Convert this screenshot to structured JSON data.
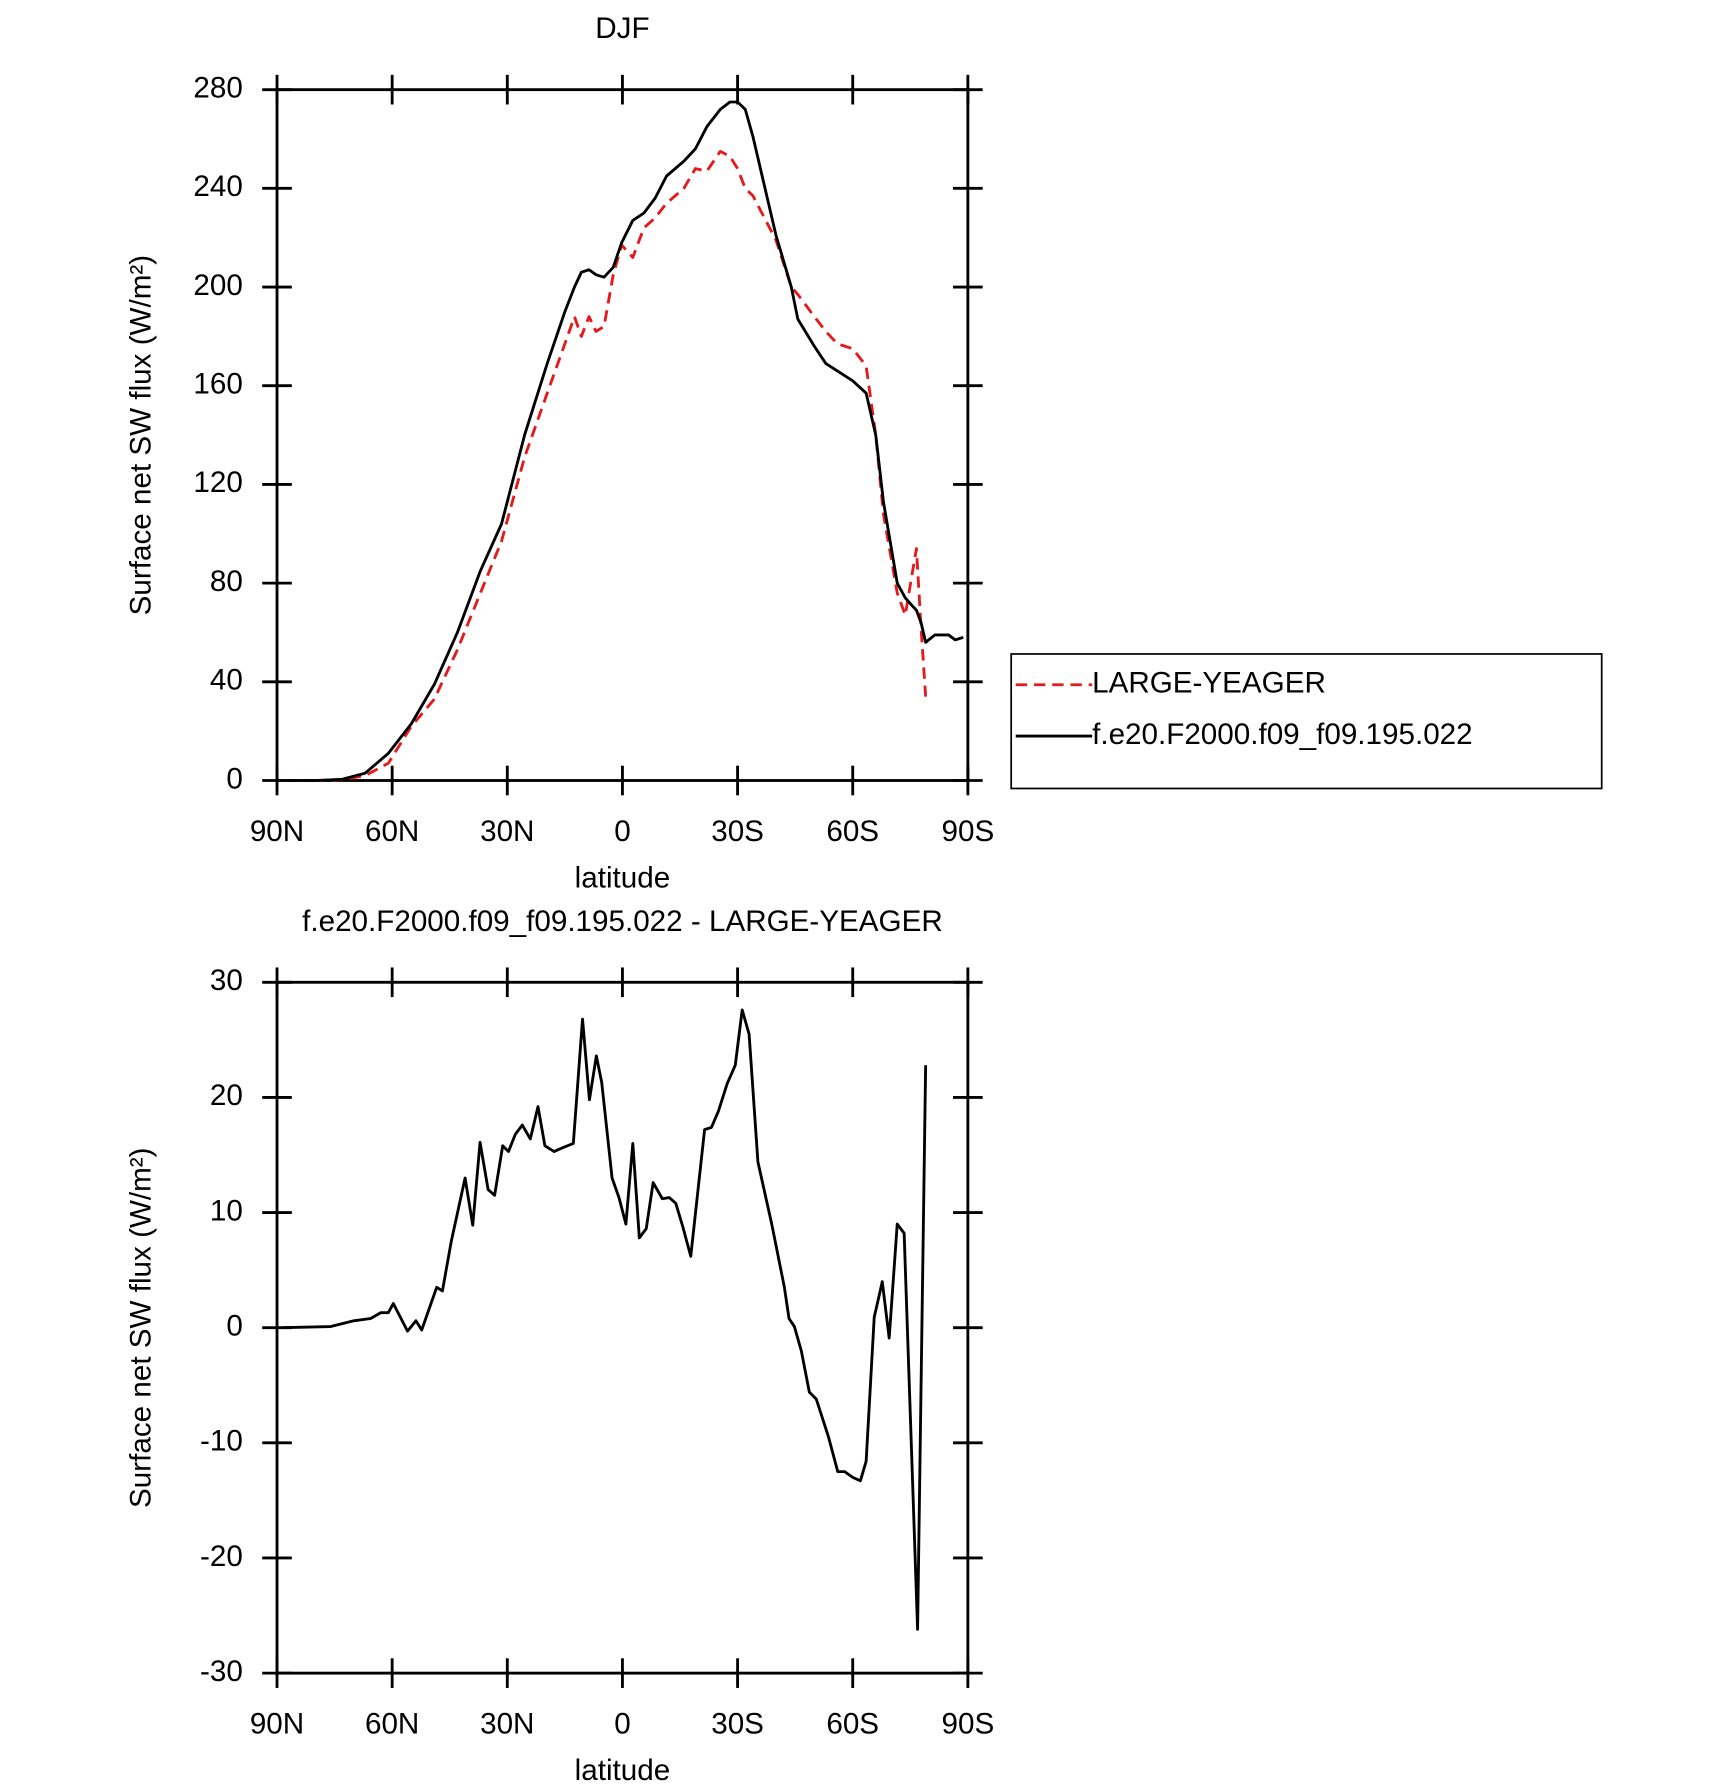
{
  "chart_data": [
    {
      "type": "line",
      "title": "DJF",
      "xlabel": "latitude",
      "ylabel": "Surface net SW flux (W/m²)",
      "x": [
        90,
        80,
        73,
        67,
        61,
        55,
        49,
        43,
        37,
        31.5,
        25.5,
        19.6,
        15,
        12.5,
        10.7,
        8.7,
        6.9,
        4.8,
        2.4,
        0.2,
        -2.7,
        -5.6,
        -8.5,
        -11.5,
        -16,
        -19,
        -22,
        -25.5,
        -28,
        -30,
        -32,
        -34,
        -40,
        -44,
        -45.7,
        -50,
        -53,
        -56,
        -60,
        -63.5,
        -66,
        -68,
        -71.6,
        -73.7,
        -75.4,
        -76.6,
        -77.8,
        -79,
        -81.4,
        -85,
        -86.7,
        -88.8
      ],
      "series": [
        {
          "name": "LARGE-YEAGER",
          "color": "#e41a1c",
          "line_style": "dashed",
          "values": [
            0,
            0,
            0.3,
            2,
            7,
            22,
            33,
            53,
            76,
            97,
            131,
            157,
            177,
            188,
            180,
            188,
            182,
            184,
            205,
            217,
            212,
            224,
            228,
            234,
            240,
            248,
            247,
            255,
            253,
            248,
            240,
            237,
            219,
            200,
            197,
            188,
            182,
            177,
            175,
            168,
            140,
            108,
            76,
            67,
            83,
            94,
            62,
            34,
            null,
            null,
            null,
            null
          ]
        },
        {
          "name": "f.e20.F2000.f09_f09.195.022",
          "color": "#000000",
          "line_style": "solid",
          "values": [
            0,
            0,
            0.5,
            3,
            11,
            23,
            39,
            60,
            85,
            104,
            140,
            169,
            190,
            200,
            206,
            207,
            205,
            204,
            208,
            218,
            227,
            230,
            236,
            245,
            251,
            256,
            265,
            272,
            275,
            275,
            272,
            261,
            221,
            200,
            187,
            176,
            169,
            166,
            162,
            157,
            140,
            113,
            80,
            74,
            71,
            69,
            64,
            56,
            59,
            59,
            57,
            58
          ]
        }
      ],
      "xlim": [
        90,
        -90
      ],
      "xticks": [
        {
          "value": 90,
          "label": "90N"
        },
        {
          "value": 60,
          "label": "60N"
        },
        {
          "value": 30,
          "label": "30N"
        },
        0,
        {
          "value": -30,
          "label": "30S"
        },
        {
          "value": -60,
          "label": "60S"
        },
        {
          "value": -90,
          "label": "90S"
        }
      ],
      "ylim": [
        0,
        280
      ],
      "yticks": [
        0,
        40,
        80,
        120,
        160,
        200,
        240,
        280
      ],
      "legend": "right"
    },
    {
      "type": "line",
      "title": "f.e20.F2000.f09_f09.195.022 - LARGE-YEAGER",
      "xlabel": "latitude",
      "ylabel": "Surface net SW flux (W/m²)",
      "x": [
        88.8,
        76,
        70,
        65.6,
        63,
        61,
        59.7,
        56,
        53.8,
        52.3,
        48.4,
        46.9,
        44.6,
        41,
        39,
        37.1,
        35,
        33.3,
        31.2,
        29.7,
        27.9,
        26.1,
        24,
        22,
        20.2,
        17.8,
        15.8,
        12.8,
        10.4,
        8.6,
        6.8,
        5.4,
        2.7,
        0.9,
        -0.9,
        -2.7,
        -4.4,
        -6.2,
        -8,
        -10.4,
        -12.2,
        -13.9,
        -15.7,
        -17.8,
        -21.4,
        -23.2,
        -25,
        -27.3,
        -29.4,
        -31.2,
        -33,
        -35.3,
        -38.9,
        -42.2,
        -43.4,
        -44.8,
        -46.6,
        -48.7,
        -50.5,
        -53.7,
        -56.1,
        -57.9,
        -60,
        -62,
        -63.5,
        -65.6,
        -67.7,
        -69.5,
        -71.6,
        -73.4,
        -76.9,
        -79
      ],
      "values": [
        0,
        0.1,
        0.6,
        0.8,
        1.3,
        1.3,
        2.1,
        -0.3,
        0.6,
        -0.2,
        3.5,
        3.2,
        7.5,
        13,
        8.9,
        16.1,
        12,
        11.5,
        15.8,
        15.3,
        16.8,
        17.6,
        16.4,
        19.2,
        15.8,
        15.3,
        15.6,
        16,
        26.8,
        19.8,
        23.6,
        21.3,
        13,
        11.3,
        9,
        16,
        7.8,
        8.6,
        12.6,
        11.2,
        11.3,
        10.8,
        8.8,
        6.2,
        17.2,
        17.4,
        18.8,
        21.2,
        22.8,
        27.6,
        25.5,
        14.4,
        9,
        3.5,
        0.8,
        0.1,
        -2,
        -5.6,
        -6.2,
        -9.5,
        -12.5,
        -12.5,
        -13,
        -13.3,
        -11.6,
        0.9,
        4,
        -0.9,
        9,
        8.2,
        -26.2,
        22.8
      ],
      "color": "#000000",
      "xlim": [
        90,
        -90
      ],
      "xticks": [
        {
          "value": 90,
          "label": "90N"
        },
        {
          "value": 60,
          "label": "60N"
        },
        {
          "value": 30,
          "label": "30N"
        },
        0,
        {
          "value": -30,
          "label": "30S"
        },
        {
          "value": -60,
          "label": "60S"
        },
        {
          "value": -90,
          "label": "90S"
        }
      ],
      "ylim": [
        -30,
        30
      ],
      "yticks": [
        -30,
        -20,
        -10,
        0,
        10,
        20,
        30
      ]
    }
  ]
}
